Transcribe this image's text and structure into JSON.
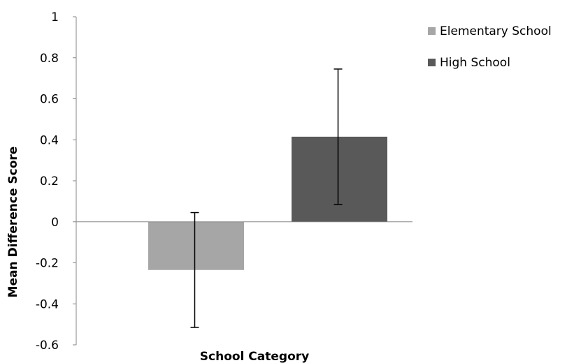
{
  "chart_data": {
    "type": "bar",
    "title": "",
    "xlabel": "School Category",
    "ylabel": "Mean Difference Score",
    "ylim": [
      -0.6,
      1
    ],
    "yticks": [
      -0.6,
      -0.4,
      -0.2,
      0,
      0.2,
      0.4,
      0.6,
      0.8,
      1
    ],
    "grid": false,
    "legend_position": "top-right",
    "series": [
      {
        "name": "Elementary School",
        "value": -0.235,
        "error_low": -0.515,
        "error_high": 0.045,
        "color": "#a6a6a6"
      },
      {
        "name": "High School",
        "value": 0.415,
        "error_low": 0.085,
        "error_high": 0.745,
        "color": "#595959"
      }
    ]
  }
}
